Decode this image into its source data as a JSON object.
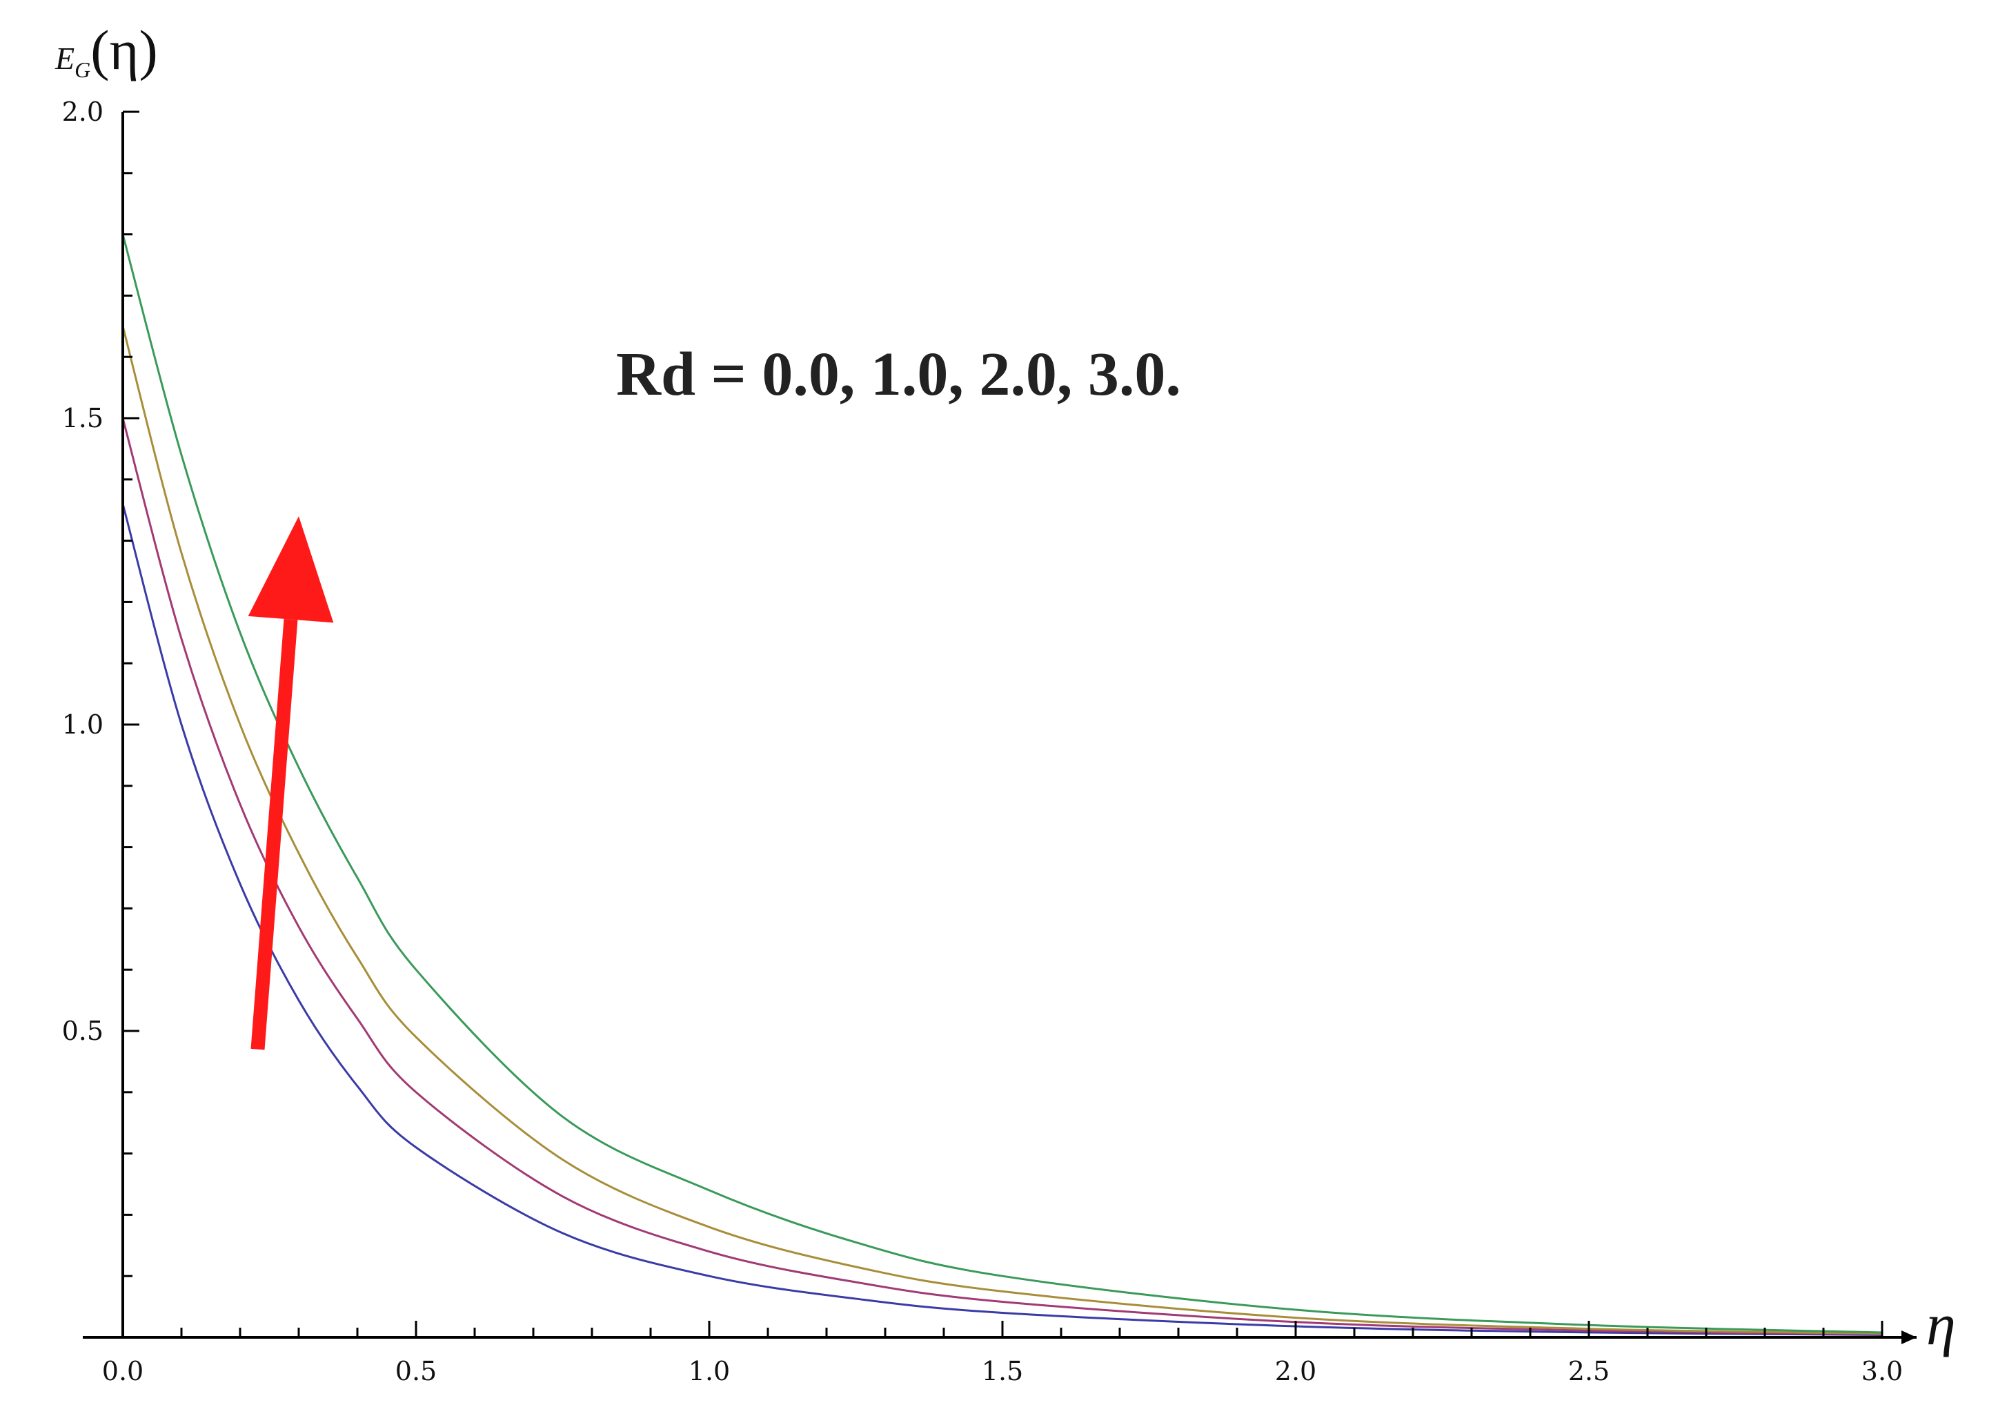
{
  "chart_data": {
    "type": "line",
    "title": "",
    "xlabel": "η",
    "ylabel_main": "E",
    "ylabel_sub": "G",
    "ylabel_arg": "(η)",
    "xlim": [
      0,
      3.0
    ],
    "ylim": [
      0,
      2.0
    ],
    "x_ticks": [
      "0.0",
      "0.5",
      "1.0",
      "1.5",
      "2.0",
      "2.5",
      "3.0"
    ],
    "y_ticks": [
      "0.5",
      "1.0",
      "1.5",
      "2.0"
    ],
    "x_tick_values": [
      0,
      0.5,
      1.0,
      1.5,
      2.0,
      2.5,
      3.0
    ],
    "y_tick_values": [
      0.5,
      1.0,
      1.5,
      2.0
    ],
    "grid": false,
    "annotation": "Rd = 0.0, 1.0, 2.0, 3.0.",
    "arrow": {
      "from": [
        0.23,
        0.47
      ],
      "to": [
        0.3,
        1.34
      ],
      "color": "#ff1a1a"
    },
    "series": [
      {
        "color": "#3b3ba8",
        "x": [
          0,
          0.1,
          0.2,
          0.3,
          0.4,
          0.5,
          0.75,
          1.0,
          1.25,
          1.5,
          2.0,
          2.5,
          3.0
        ],
        "y": [
          1.36,
          1.0,
          0.74,
          0.55,
          0.41,
          0.31,
          0.17,
          0.1,
          0.063,
          0.04,
          0.018,
          0.008,
          0.004
        ]
      },
      {
        "color": "#a23a74",
        "x": [
          0,
          0.1,
          0.2,
          0.3,
          0.4,
          0.5,
          0.75,
          1.0,
          1.25,
          1.5,
          2.0,
          2.5,
          3.0
        ],
        "y": [
          1.5,
          1.14,
          0.87,
          0.67,
          0.52,
          0.4,
          0.23,
          0.14,
          0.09,
          0.058,
          0.025,
          0.011,
          0.005
        ]
      },
      {
        "color": "#a88e3a",
        "x": [
          0,
          0.1,
          0.2,
          0.3,
          0.4,
          0.5,
          0.75,
          1.0,
          1.25,
          1.5,
          2.0,
          2.5,
          3.0
        ],
        "y": [
          1.65,
          1.28,
          1.0,
          0.79,
          0.62,
          0.49,
          0.29,
          0.18,
          0.115,
          0.075,
          0.032,
          0.014,
          0.006
        ]
      },
      {
        "color": "#3a9a5a",
        "x": [
          0,
          0.1,
          0.2,
          0.3,
          0.4,
          0.5,
          0.75,
          1.0,
          1.25,
          1.5,
          2.0,
          2.5,
          3.0
        ],
        "y": [
          1.8,
          1.44,
          1.15,
          0.93,
          0.75,
          0.6,
          0.36,
          0.24,
          0.155,
          0.1,
          0.045,
          0.02,
          0.008
        ]
      }
    ]
  }
}
